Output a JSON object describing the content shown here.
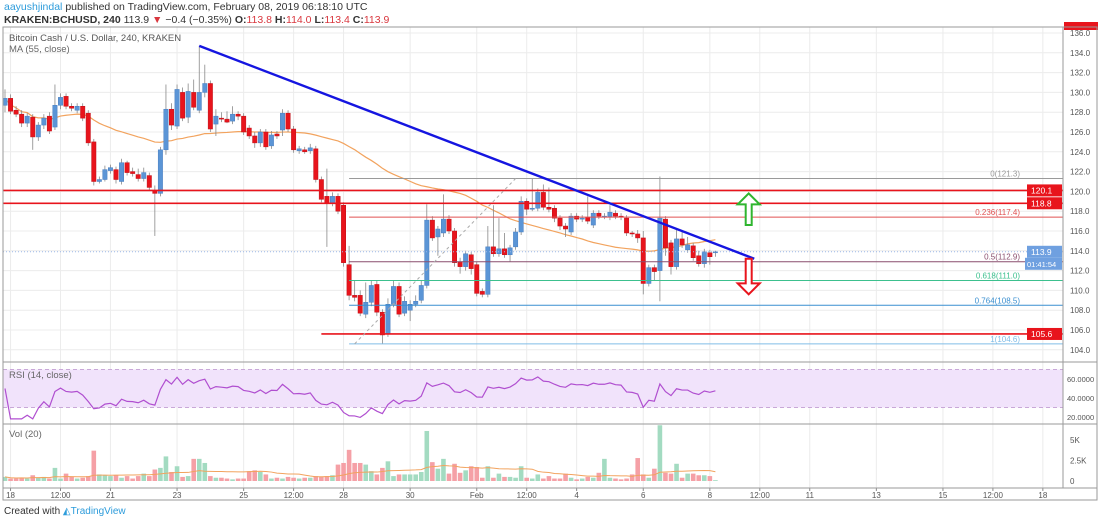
{
  "header": {
    "author": "aayushjindal",
    "published": "published on TradingView.com, February 08, 2019 06:18:10 UTC",
    "symbol": "KRAKEN:BCHUSD, 240",
    "last": "113.9",
    "change": "−0.4 (−0.35%)",
    "o_label": "O:",
    "o": "113.8",
    "h_label": "H:",
    "h": "114.0",
    "l_label": "L:",
    "l": "113.4",
    "c_label": "C:",
    "c": "113.9"
  },
  "legend": {
    "title": "Bitcoin Cash / U.S. Dollar, 240, KRAKEN",
    "ma": "MA (55, close)",
    "rsi": "RSI (14, close)",
    "vol": "Vol (20)"
  },
  "footer": {
    "created": "Created with",
    "brand": "TradingView"
  },
  "colors": {
    "up": "#5b95d6",
    "down": "#e8141c",
    "vol_up": "#a3dbc1",
    "vol_down": "#f5a0a6",
    "ma": "#f2a35e",
    "trendline": "#1515e0",
    "rsi": "#b04fd0",
    "rsi_band": "#f1e3fb"
  },
  "chart_data": {
    "type": "candlestick",
    "interval_minutes": 240,
    "start": "2019-01-17T20:00",
    "ohlc": [
      [
        128.7,
        130.3,
        128.0,
        129.4
      ],
      [
        129.4,
        129.8,
        127.8,
        128.1
      ],
      [
        128.2,
        128.6,
        127.5,
        127.8
      ],
      [
        127.8,
        128.2,
        126.5,
        126.9
      ],
      [
        126.9,
        127.9,
        126.5,
        127.6
      ],
      [
        127.5,
        127.8,
        124.2,
        125.5
      ],
      [
        125.5,
        127.0,
        125.1,
        126.7
      ],
      [
        126.7,
        127.8,
        126.3,
        127.4
      ],
      [
        127.6,
        128.0,
        125.8,
        126.1
      ],
      [
        126.5,
        130.8,
        126.2,
        128.7
      ],
      [
        128.7,
        129.9,
        128.3,
        129.5
      ],
      [
        129.6,
        129.9,
        128.3,
        128.6
      ],
      [
        128.6,
        128.9,
        128.1,
        128.4
      ],
      [
        128.2,
        128.9,
        127.9,
        128.6
      ],
      [
        128.6,
        128.9,
        127.1,
        127.4
      ],
      [
        127.9,
        128.2,
        124.6,
        124.9
      ],
      [
        125.0,
        125.3,
        120.6,
        121.0
      ],
      [
        121.0,
        121.5,
        120.8,
        121.2
      ],
      [
        121.2,
        122.6,
        121.0,
        122.2
      ],
      [
        122.1,
        122.7,
        121.8,
        122.4
      ],
      [
        122.2,
        122.5,
        120.8,
        121.2
      ],
      [
        121.0,
        123.3,
        120.7,
        122.9
      ],
      [
        122.9,
        123.1,
        121.6,
        121.9
      ],
      [
        122.0,
        122.4,
        121.5,
        121.8
      ],
      [
        121.7,
        122.3,
        121.0,
        121.3
      ],
      [
        121.3,
        122.4,
        121.0,
        121.9
      ],
      [
        121.6,
        121.9,
        120.1,
        120.4
      ],
      [
        120.1,
        120.6,
        115.5,
        119.8
      ],
      [
        119.8,
        124.5,
        119.5,
        124.2
      ],
      [
        124.2,
        130.8,
        123.7,
        128.3
      ],
      [
        128.3,
        128.9,
        126.2,
        126.7
      ],
      [
        126.6,
        130.8,
        126.3,
        130.3
      ],
      [
        130.0,
        130.5,
        127.1,
        127.4
      ],
      [
        127.5,
        130.9,
        126.9,
        130.1
      ],
      [
        130.0,
        131.3,
        128.2,
        128.5
      ],
      [
        128.2,
        134.7,
        127.9,
        130.0
      ],
      [
        130.0,
        132.8,
        129.5,
        130.9
      ],
      [
        130.9,
        131.2,
        126.0,
        126.3
      ],
      [
        126.8,
        128.3,
        125.6,
        127.6
      ],
      [
        127.4,
        128.0,
        127.0,
        127.3
      ],
      [
        127.3,
        128.1,
        126.9,
        127.0
      ],
      [
        127.1,
        128.6,
        126.8,
        127.8
      ],
      [
        127.8,
        128.1,
        127.2,
        127.6
      ],
      [
        127.6,
        127.9,
        125.7,
        126.0
      ],
      [
        126.4,
        126.7,
        125.3,
        125.6
      ],
      [
        125.6,
        126.0,
        124.4,
        124.9
      ],
      [
        124.9,
        126.3,
        124.5,
        126.0
      ],
      [
        126.0,
        126.3,
        124.2,
        124.5
      ],
      [
        124.6,
        126.1,
        124.3,
        125.7
      ],
      [
        125.8,
        126.1,
        125.3,
        125.6
      ],
      [
        126.2,
        128.3,
        125.6,
        127.9
      ],
      [
        127.9,
        128.2,
        126.0,
        126.3
      ],
      [
        126.3,
        126.6,
        123.9,
        124.2
      ],
      [
        124.1,
        124.6,
        123.8,
        124.3
      ],
      [
        124.2,
        124.5,
        123.8,
        124.0
      ],
      [
        124.1,
        124.8,
        123.8,
        124.4
      ],
      [
        124.3,
        124.6,
        120.9,
        121.2
      ],
      [
        121.2,
        121.5,
        118.9,
        119.2
      ],
      [
        119.5,
        122.3,
        114.4,
        118.8
      ],
      [
        118.8,
        119.9,
        118.5,
        119.5
      ],
      [
        119.5,
        119.8,
        117.7,
        118.0
      ],
      [
        118.6,
        118.9,
        112.4,
        112.8
      ],
      [
        112.6,
        114.5,
        109.0,
        109.5
      ],
      [
        109.5,
        111.0,
        108.9,
        109.3
      ],
      [
        109.5,
        110.0,
        107.4,
        107.7
      ],
      [
        107.6,
        110.8,
        107.2,
        108.8
      ],
      [
        108.8,
        111.0,
        108.4,
        110.5
      ],
      [
        110.6,
        111.0,
        107.4,
        107.8
      ],
      [
        107.8,
        108.1,
        104.6,
        105.5
      ],
      [
        105.6,
        109.2,
        105.3,
        108.6
      ],
      [
        108.6,
        111.0,
        108.3,
        110.4
      ],
      [
        110.4,
        110.8,
        107.3,
        107.6
      ],
      [
        107.7,
        109.4,
        107.4,
        108.9
      ],
      [
        108.0,
        109.0,
        106.9,
        108.6
      ],
      [
        108.6,
        109.5,
        108.3,
        108.9
      ],
      [
        109.0,
        111.0,
        108.7,
        110.5
      ],
      [
        110.5,
        118.7,
        110.2,
        117.1
      ],
      [
        117.1,
        117.5,
        115.0,
        115.3
      ],
      [
        115.4,
        116.5,
        113.5,
        116.2
      ],
      [
        115.8,
        119.7,
        115.4,
        117.2
      ],
      [
        117.2,
        117.6,
        115.7,
        116.0
      ],
      [
        116.0,
        116.3,
        112.4,
        112.8
      ],
      [
        112.9,
        113.3,
        111.7,
        112.4
      ],
      [
        112.4,
        114.0,
        112.0,
        113.7
      ],
      [
        113.6,
        113.9,
        111.6,
        112.2
      ],
      [
        112.6,
        112.9,
        109.4,
        109.7
      ],
      [
        109.9,
        110.2,
        109.3,
        109.6
      ],
      [
        109.6,
        116.5,
        109.3,
        114.4
      ],
      [
        114.4,
        118.6,
        113.4,
        113.7
      ],
      [
        113.7,
        117.3,
        113.4,
        114.2
      ],
      [
        114.2,
        115.8,
        113.3,
        113.6
      ],
      [
        113.6,
        114.6,
        112.9,
        114.3
      ],
      [
        114.4,
        116.3,
        114.1,
        115.9
      ],
      [
        115.9,
        119.5,
        115.6,
        119.0
      ],
      [
        119.0,
        119.3,
        117.6,
        118.2
      ],
      [
        118.2,
        121.3,
        118.0,
        118.3
      ],
      [
        118.3,
        120.3,
        118.0,
        119.9
      ],
      [
        119.9,
        120.7,
        118.1,
        118.4
      ],
      [
        118.4,
        120.4,
        117.9,
        118.2
      ],
      [
        118.3,
        118.6,
        116.9,
        117.3
      ],
      [
        117.3,
        117.6,
        116.1,
        116.5
      ],
      [
        116.5,
        116.8,
        115.4,
        116.2
      ],
      [
        115.9,
        117.8,
        115.6,
        117.5
      ],
      [
        117.5,
        117.8,
        116.9,
        117.2
      ],
      [
        117.2,
        117.6,
        116.9,
        117.3
      ],
      [
        117.4,
        119.5,
        116.7,
        117.0
      ],
      [
        116.6,
        118.1,
        116.3,
        117.8
      ],
      [
        117.8,
        118.1,
        117.2,
        117.5
      ],
      [
        117.5,
        117.8,
        117.2,
        117.5
      ],
      [
        117.4,
        118.6,
        117.1,
        117.9
      ],
      [
        117.8,
        118.1,
        117.2,
        117.5
      ],
      [
        117.5,
        117.8,
        117.1,
        117.4
      ],
      [
        117.3,
        117.6,
        115.5,
        115.8
      ],
      [
        115.8,
        116.0,
        115.4,
        115.7
      ],
      [
        115.7,
        116.1,
        114.8,
        115.3
      ],
      [
        115.3,
        116.0,
        109.6,
        110.7
      ],
      [
        110.7,
        112.6,
        110.4,
        112.3
      ],
      [
        112.3,
        112.6,
        111.0,
        111.9
      ],
      [
        112.0,
        121.5,
        108.9,
        117.3
      ],
      [
        117.2,
        117.5,
        113.5,
        114.3
      ],
      [
        114.8,
        115.1,
        111.6,
        112.4
      ],
      [
        112.4,
        116.3,
        112.1,
        115.2
      ],
      [
        115.2,
        116.0,
        114.3,
        114.6
      ],
      [
        114.1,
        115.4,
        113.8,
        114.6
      ],
      [
        114.5,
        114.8,
        113.0,
        113.3
      ],
      [
        113.5,
        114.0,
        112.4,
        112.7
      ],
      [
        112.7,
        114.2,
        112.3,
        113.9
      ],
      [
        113.8,
        114.1,
        112.6,
        113.4
      ],
      [
        113.8,
        114.0,
        113.4,
        113.9
      ]
    ],
    "volume": [
      500,
      300,
      300,
      400,
      300,
      700,
      400,
      500,
      300,
      1600,
      300,
      900,
      500,
      300,
      400,
      600,
      3700,
      800,
      700,
      600,
      700,
      400,
      600,
      300,
      600,
      900,
      600,
      1400,
      1600,
      3000,
      1100,
      1800,
      500,
      600,
      2700,
      2700,
      2200,
      600,
      400,
      400,
      300,
      200,
      300,
      300,
      1200,
      1300,
      1100,
      800,
      300,
      400,
      300,
      500,
      400,
      300,
      400,
      400,
      600,
      500,
      600,
      700,
      2000,
      2200,
      3800,
      2200,
      2200,
      2000,
      1200,
      800,
      1600,
      2400,
      600,
      800,
      800,
      800,
      800,
      1100,
      6100,
      2300,
      1500,
      2700,
      900,
      2100,
      1000,
      1300,
      1800,
      1700,
      400,
      1800,
      400,
      900,
      500,
      500,
      400,
      1800,
      400,
      300,
      800,
      300,
      600,
      300,
      300,
      900,
      400,
      200,
      300,
      500,
      400,
      1000,
      2700,
      400,
      300,
      200,
      300,
      800,
      2800,
      800,
      400,
      1500,
      6800,
      1000,
      900,
      2100,
      400,
      900,
      900,
      700,
      700,
      600,
      100
    ],
    "price_axis": {
      "range": [
        103,
        138
      ],
      "ticks": [
        "104.0",
        "106.0",
        "108.0",
        "110.0",
        "112.0",
        "114.0",
        "116.0",
        "118.0",
        "120.0",
        "122.0",
        "124.0",
        "126.0",
        "128.0",
        "130.0",
        "132.0",
        "134.0",
        "136.0"
      ]
    },
    "price_labels": [
      {
        "text": "120.1",
        "price": 120.1,
        "color": "#e8141c"
      },
      {
        "text": "118.8",
        "price": 118.8,
        "color": "#e8141c"
      },
      {
        "text": "113.9",
        "price": 113.9,
        "color": "#6fa0e0"
      },
      {
        "text": "105.6",
        "price": 105.6,
        "color": "#e8141c"
      }
    ],
    "countdown": "01:41:54",
    "rsi_axis": {
      "ticks": [
        "60.0000",
        "40.0000",
        "20.0000"
      ],
      "band": [
        30,
        70
      ]
    },
    "vol_axis": {
      "ticks": [
        "5K",
        "2.5K",
        "0"
      ]
    },
    "time_ticks": [
      {
        "label": "18",
        "time": "2019-01-18T00:00"
      },
      {
        "label": "12:00",
        "time": "2019-01-19T12:00"
      },
      {
        "label": "21",
        "time": "2019-01-21T00:00"
      },
      {
        "label": "23",
        "time": "2019-01-23T00:00"
      },
      {
        "label": "25",
        "time": "2019-01-25T00:00"
      },
      {
        "label": "12:00",
        "time": "2019-01-26T12:00"
      },
      {
        "label": "28",
        "time": "2019-01-28T00:00"
      },
      {
        "label": "30",
        "time": "2019-01-30T00:00"
      },
      {
        "label": "Feb",
        "time": "2019-02-01T00:00"
      },
      {
        "label": "12:00",
        "time": "2019-02-02T12:00"
      },
      {
        "label": "4",
        "time": "2019-02-04T00:00"
      },
      {
        "label": "6",
        "time": "2019-02-06T00:00"
      },
      {
        "label": "8",
        "time": "2019-02-08T00:00"
      },
      {
        "label": "12:00",
        "time": "2019-02-09T12:00"
      },
      {
        "label": "11",
        "time": "2019-02-11T00:00"
      },
      {
        "label": "13",
        "time": "2019-02-13T00:00"
      },
      {
        "label": "15",
        "time": "2019-02-15T00:00"
      },
      {
        "label": "12:00",
        "time": "2019-02-16T12:00"
      },
      {
        "label": "18",
        "time": "2019-02-18T00:00"
      }
    ],
    "trendline": {
      "from": {
        "time": "2019-01-23T16:00",
        "price": 134.7
      },
      "to": {
        "time": "2019-02-09T08:00",
        "price": 113.2
      }
    },
    "horizontal_lines": [
      {
        "price": 120.1,
        "from": null
      },
      {
        "price": 118.8,
        "from": null
      },
      {
        "price": 105.6,
        "from": "2019-01-27T08:00"
      }
    ],
    "fibonacci": {
      "from": "2019-01-28T04:00",
      "anchor_low": {
        "time": "2019-01-28T08:00",
        "price": 104.6
      },
      "anchor_high": {
        "time": "2019-02-02T04:00",
        "price": 121.3
      },
      "levels": [
        {
          "label": "0(121.3)",
          "price": 121.3,
          "color": "#9a9a9a"
        },
        {
          "label": "0.236(117.4)",
          "price": 117.4,
          "color": "#e05252"
        },
        {
          "label": "0.5(112.9)",
          "price": 112.9,
          "color": "#8a4f6e"
        },
        {
          "label": "0.618(111.0)",
          "price": 111.0,
          "color": "#3cc08e"
        },
        {
          "label": "0.764(108.5)",
          "price": 108.5,
          "color": "#3a8fd0"
        },
        {
          "label": "1(104.6)",
          "price": 104.6,
          "color": "#80bde8"
        }
      ]
    },
    "arrows": [
      {
        "direction": "up",
        "time": "2019-02-09T04:00",
        "price_from": 116.6,
        "price_to": 119.8,
        "color": "#2fb52f"
      },
      {
        "direction": "down",
        "time": "2019-02-09T04:00",
        "price_from": 113.2,
        "price_to": 109.6,
        "color": "#e8141c"
      }
    ]
  }
}
